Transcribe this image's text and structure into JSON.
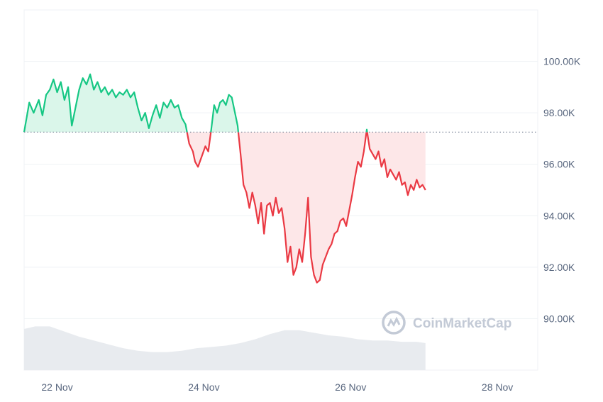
{
  "watermark": {
    "text": "CoinMarketCap",
    "icon": "coinmarketcap-logo-icon"
  },
  "colors": {
    "up": "#16c784",
    "down": "#ea3943",
    "up_fill": "#d6f5e8",
    "down_fill": "#fde4e6",
    "grid": "#eff2f5",
    "volume": "#e8ebef",
    "text": "#58667e"
  },
  "chart_data": {
    "type": "line",
    "title": "",
    "xlabel": "",
    "ylabel": "",
    "x_tick_labels": [
      "22 Nov",
      "24 Nov",
      "26 Nov",
      "28 Nov"
    ],
    "x_tick_days": [
      22,
      24,
      26,
      28
    ],
    "y_tick_labels": [
      "100.00K",
      "98.00K",
      "96.00K",
      "94.00K",
      "92.00K",
      "90.00K"
    ],
    "y_tick_values": [
      100000,
      98000,
      96000,
      94000,
      92000,
      90000
    ],
    "xlim_days": [
      21.55,
      28.55
    ],
    "ylim": [
      88000,
      102000
    ],
    "baseline": 97250,
    "grid": true,
    "legend": "none",
    "series": [
      {
        "points": [
          [
            21.55,
            97250
          ],
          [
            21.62,
            98400
          ],
          [
            21.68,
            98000
          ],
          [
            21.75,
            98500
          ],
          [
            21.8,
            97900
          ],
          [
            21.85,
            98700
          ],
          [
            21.9,
            98900
          ],
          [
            21.95,
            99300
          ],
          [
            22.0,
            98800
          ],
          [
            22.05,
            99200
          ],
          [
            22.1,
            98500
          ],
          [
            22.15,
            99000
          ],
          [
            22.2,
            97500
          ],
          [
            22.25,
            98200
          ],
          [
            22.3,
            98900
          ],
          [
            22.35,
            99350
          ],
          [
            22.4,
            99100
          ],
          [
            22.45,
            99500
          ],
          [
            22.5,
            98900
          ],
          [
            22.55,
            99200
          ],
          [
            22.6,
            98800
          ],
          [
            22.65,
            99000
          ],
          [
            22.7,
            98700
          ],
          [
            22.75,
            98900
          ],
          [
            22.8,
            98600
          ],
          [
            22.85,
            98800
          ],
          [
            22.9,
            98700
          ],
          [
            22.95,
            98900
          ],
          [
            23.0,
            98600
          ],
          [
            23.05,
            98800
          ],
          [
            23.1,
            98200
          ],
          [
            23.15,
            97700
          ],
          [
            23.2,
            98000
          ],
          [
            23.25,
            97400
          ],
          [
            23.3,
            97900
          ],
          [
            23.35,
            98300
          ],
          [
            23.4,
            97800
          ],
          [
            23.45,
            98400
          ],
          [
            23.5,
            98200
          ],
          [
            23.55,
            98500
          ],
          [
            23.6,
            98200
          ],
          [
            23.65,
            98300
          ],
          [
            23.7,
            97800
          ],
          [
            23.75,
            97550
          ],
          [
            23.8,
            96800
          ],
          [
            23.85,
            96500
          ],
          [
            23.88,
            96100
          ],
          [
            23.92,
            95900
          ],
          [
            23.97,
            96300
          ],
          [
            24.02,
            96700
          ],
          [
            24.06,
            96500
          ],
          [
            24.1,
            97350
          ],
          [
            24.14,
            98300
          ],
          [
            24.18,
            98000
          ],
          [
            24.22,
            98400
          ],
          [
            24.26,
            98500
          ],
          [
            24.3,
            98300
          ],
          [
            24.34,
            98700
          ],
          [
            24.38,
            98600
          ],
          [
            24.42,
            98050
          ],
          [
            24.46,
            97500
          ],
          [
            24.5,
            96400
          ],
          [
            24.54,
            95200
          ],
          [
            24.58,
            94900
          ],
          [
            24.62,
            94300
          ],
          [
            24.66,
            94900
          ],
          [
            24.7,
            94400
          ],
          [
            24.74,
            93700
          ],
          [
            24.78,
            94500
          ],
          [
            24.82,
            93300
          ],
          [
            24.86,
            94400
          ],
          [
            24.9,
            94500
          ],
          [
            24.94,
            94000
          ],
          [
            24.98,
            94700
          ],
          [
            25.02,
            94100
          ],
          [
            25.06,
            94300
          ],
          [
            25.1,
            93500
          ],
          [
            25.14,
            92200
          ],
          [
            25.18,
            92800
          ],
          [
            25.22,
            91700
          ],
          [
            25.26,
            92000
          ],
          [
            25.3,
            92700
          ],
          [
            25.34,
            92200
          ],
          [
            25.38,
            93300
          ],
          [
            25.42,
            94700
          ],
          [
            25.46,
            92400
          ],
          [
            25.5,
            91700
          ],
          [
            25.54,
            91400
          ],
          [
            25.58,
            91500
          ],
          [
            25.62,
            92100
          ],
          [
            25.66,
            92400
          ],
          [
            25.7,
            92700
          ],
          [
            25.74,
            92900
          ],
          [
            25.78,
            93300
          ],
          [
            25.82,
            93400
          ],
          [
            25.86,
            93800
          ],
          [
            25.9,
            93900
          ],
          [
            25.94,
            93600
          ],
          [
            25.98,
            94200
          ],
          [
            26.02,
            94800
          ],
          [
            26.06,
            95500
          ],
          [
            26.1,
            96100
          ],
          [
            26.14,
            95900
          ],
          [
            26.18,
            96500
          ],
          [
            26.22,
            97350
          ],
          [
            26.26,
            96600
          ],
          [
            26.3,
            96400
          ],
          [
            26.34,
            96200
          ],
          [
            26.38,
            96500
          ],
          [
            26.42,
            95900
          ],
          [
            26.46,
            96200
          ],
          [
            26.5,
            95500
          ],
          [
            26.54,
            95800
          ],
          [
            26.58,
            95600
          ],
          [
            26.62,
            95400
          ],
          [
            26.66,
            95700
          ],
          [
            26.7,
            95200
          ],
          [
            26.74,
            95300
          ],
          [
            26.78,
            94800
          ],
          [
            26.82,
            95200
          ],
          [
            26.86,
            95000
          ],
          [
            26.9,
            95400
          ],
          [
            26.94,
            95100
          ],
          [
            26.98,
            95200
          ],
          [
            27.02,
            95000
          ]
        ]
      }
    ],
    "volume": {
      "type": "area",
      "points": [
        [
          21.55,
          89.6
        ],
        [
          21.7,
          89.7
        ],
        [
          21.9,
          89.7
        ],
        [
          22.1,
          89.5
        ],
        [
          22.3,
          89.3
        ],
        [
          22.5,
          89.15
        ],
        [
          22.7,
          89.0
        ],
        [
          22.9,
          88.85
        ],
        [
          23.1,
          88.75
        ],
        [
          23.3,
          88.7
        ],
        [
          23.5,
          88.7
        ],
        [
          23.7,
          88.75
        ],
        [
          23.9,
          88.85
        ],
        [
          24.1,
          88.9
        ],
        [
          24.3,
          88.95
        ],
        [
          24.5,
          89.05
        ],
        [
          24.7,
          89.2
        ],
        [
          24.9,
          89.4
        ],
        [
          25.1,
          89.55
        ],
        [
          25.3,
          89.55
        ],
        [
          25.5,
          89.45
        ],
        [
          25.7,
          89.35
        ],
        [
          25.9,
          89.3
        ],
        [
          26.1,
          89.2
        ],
        [
          26.3,
          89.15
        ],
        [
          26.5,
          89.15
        ],
        [
          26.7,
          89.1
        ],
        [
          26.9,
          89.1
        ],
        [
          27.02,
          89.05
        ]
      ]
    }
  }
}
